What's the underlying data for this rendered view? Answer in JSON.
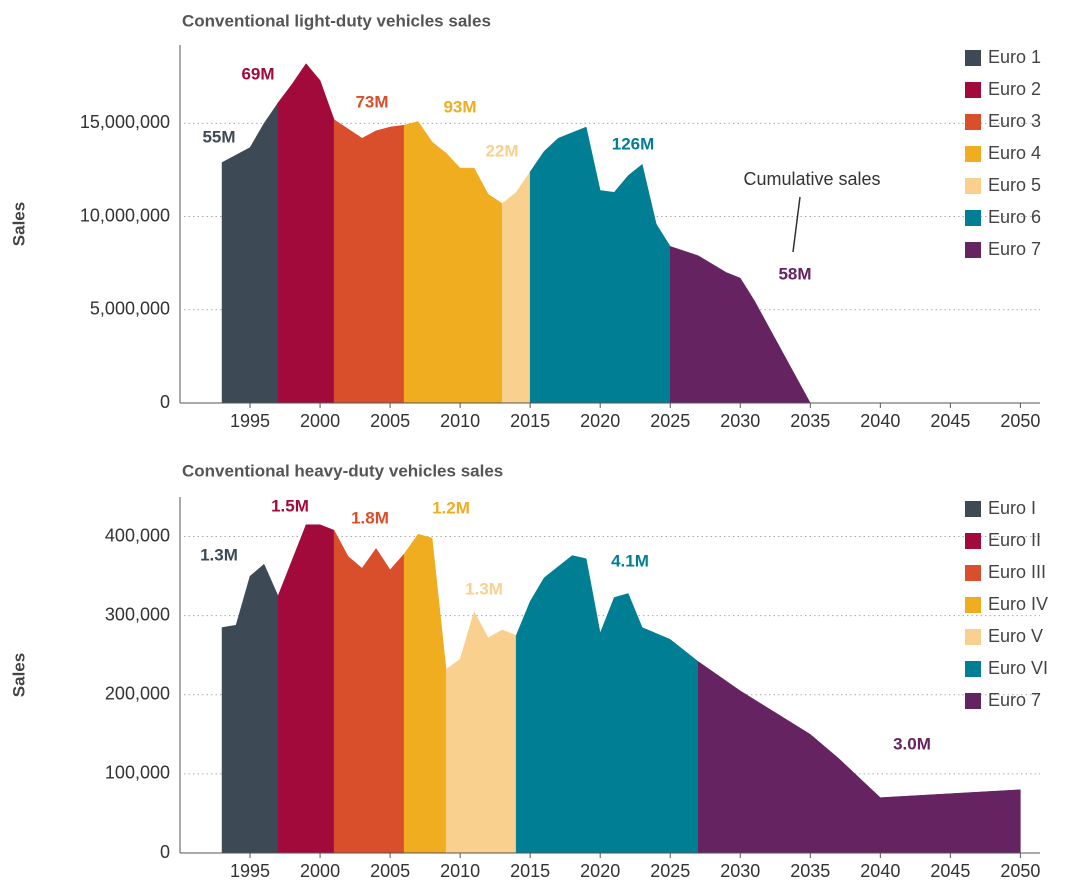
{
  "chart_data": [
    {
      "type": "area",
      "title": "Conventional light-duty vehicles sales",
      "ylabel": "Sales",
      "annotation": "Cumulative sales",
      "xlim": [
        1990,
        2051.4
      ],
      "xticks": [
        1995,
        2000,
        2005,
        2010,
        2015,
        2020,
        2025,
        2030,
        2035,
        2040,
        2045,
        2050
      ],
      "ylim": [
        0,
        19200000
      ],
      "yticks": [
        0,
        {
          "value": 5000000,
          "label": "5,000,000"
        },
        {
          "value": 10000000,
          "label": "10,000,000"
        },
        {
          "value": 15000000,
          "label": "15,000,000"
        }
      ],
      "grid": true,
      "legend": "right",
      "series": [
        {
          "name": "Euro 1",
          "color": "#3d4a55",
          "label": "55M",
          "x": [
            1993,
            1994,
            1995,
            1996,
            1997
          ],
          "values": [
            12900000,
            13300000,
            13700000,
            15000000,
            16100000
          ]
        },
        {
          "name": "Euro 2",
          "color": "#a10a3a",
          "label": "69M",
          "x": [
            1997,
            1998,
            1999,
            2000,
            2001
          ],
          "values": [
            16100000,
            17100000,
            18200000,
            17300000,
            15200000
          ]
        },
        {
          "name": "Euro 3",
          "color": "#d94e2b",
          "label": "73M",
          "x": [
            2001,
            2002,
            2003,
            2004,
            2005,
            2006
          ],
          "values": [
            15200000,
            14700000,
            14200000,
            14600000,
            14800000,
            14900000
          ]
        },
        {
          "name": "Euro 4",
          "color": "#f0ad1f",
          "label": "93M",
          "x": [
            2006,
            2007,
            2008,
            2009,
            2010,
            2011,
            2012,
            2013
          ],
          "values": [
            14900000,
            15100000,
            14000000,
            13400000,
            12600000,
            12600000,
            11200000,
            10700000
          ]
        },
        {
          "name": "Euro 5",
          "color": "#f9d08e",
          "label": "22M",
          "x": [
            2013,
            2014,
            2015
          ],
          "values": [
            10700000,
            11300000,
            12400000
          ]
        },
        {
          "name": "Euro 6",
          "color": "#007f94",
          "label": "126M",
          "x": [
            2015,
            2016,
            2017,
            2018,
            2019,
            2020,
            2021,
            2022,
            2023,
            2024,
            2025
          ],
          "values": [
            12400000,
            13500000,
            14200000,
            14500000,
            14800000,
            11400000,
            11300000,
            12200000,
            12800000,
            9600000,
            8400000
          ]
        },
        {
          "name": "Euro 7",
          "color": "#652361",
          "label": "58M",
          "x": [
            2025,
            2027,
            2029,
            2030,
            2031,
            2035
          ],
          "values": [
            8400000,
            7900000,
            7000000,
            6700000,
            5500000,
            0
          ]
        }
      ]
    },
    {
      "type": "area",
      "title": "Conventional heavy-duty vehicles sales",
      "ylabel": "Sales",
      "xlim": [
        1990,
        2051.4
      ],
      "xticks": [
        1995,
        2000,
        2005,
        2010,
        2015,
        2020,
        2025,
        2030,
        2035,
        2040,
        2045,
        2050
      ],
      "ylim": [
        0,
        450000
      ],
      "yticks": [
        0,
        {
          "value": 100000,
          "label": "100,000"
        },
        {
          "value": 200000,
          "label": "200,000"
        },
        {
          "value": 300000,
          "label": "300,000"
        },
        {
          "value": 400000,
          "label": "400,000"
        }
      ],
      "grid": true,
      "legend": "right",
      "series": [
        {
          "name": "Euro I",
          "color": "#3d4a55",
          "label": "1.3M",
          "x": [
            1993,
            1994,
            1995,
            1996,
            1997
          ],
          "values": [
            285000,
            288000,
            350000,
            365000,
            325000
          ]
        },
        {
          "name": "Euro II",
          "color": "#a10a3a",
          "label": "1.5M",
          "x": [
            1997,
            1998,
            1999,
            2000,
            2001
          ],
          "values": [
            325000,
            370000,
            415000,
            415000,
            408000
          ]
        },
        {
          "name": "Euro III",
          "color": "#d94e2b",
          "label": "1.8M",
          "x": [
            2001,
            2002,
            2003,
            2004,
            2005,
            2006
          ],
          "values": [
            408000,
            375000,
            360000,
            385000,
            358000,
            378000
          ]
        },
        {
          "name": "Euro IV",
          "color": "#f0ad1f",
          "label": "1.2M",
          "x": [
            2006,
            2007,
            2008,
            2009
          ],
          "values": [
            378000,
            403000,
            398000,
            232000
          ]
        },
        {
          "name": "Euro V",
          "color": "#f9d08e",
          "label": "1.3M",
          "x": [
            2009,
            2010,
            2011,
            2012,
            2013,
            2014
          ],
          "values": [
            232000,
            245000,
            305000,
            272000,
            282000,
            275000
          ]
        },
        {
          "name": "Euro VI",
          "color": "#007f94",
          "label": "4.1M",
          "x": [
            2014,
            2015,
            2016,
            2017,
            2018,
            2019,
            2020,
            2021,
            2022,
            2023,
            2025,
            2027
          ],
          "values": [
            275000,
            318000,
            348000,
            362000,
            376000,
            372000,
            278000,
            323000,
            328000,
            285000,
            270000,
            242000
          ]
        },
        {
          "name": "Euro 7",
          "color": "#652361",
          "label": "3.0M",
          "x": [
            2027,
            2030,
            2035,
            2037,
            2040,
            2045,
            2050
          ],
          "values": [
            242000,
            205000,
            150000,
            120000,
            70000,
            75000,
            80000
          ]
        }
      ]
    }
  ]
}
